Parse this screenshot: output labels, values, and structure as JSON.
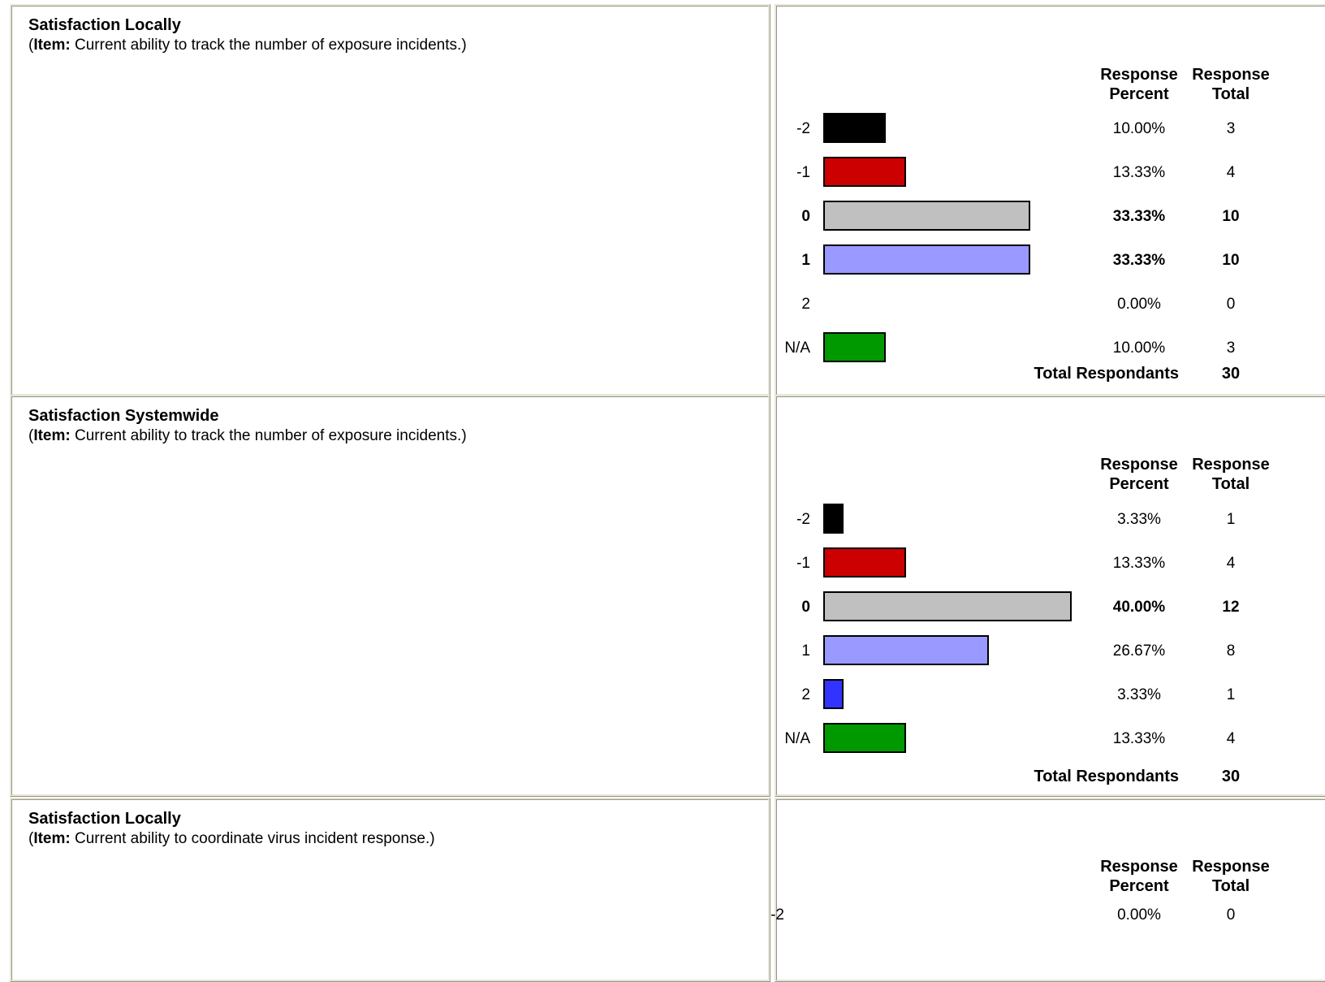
{
  "headers": {
    "percent_line1": "Response",
    "percent_line2": "Percent",
    "total_line1": "Response",
    "total_line2": "Total"
  },
  "total_label": "Total Respondants",
  "item_prefix": "Item:",
  "colors": {
    "-2": "#000000",
    "-1": "#cc0000",
    "0": "#c0c0c0",
    "1": "#9999ff",
    "2": "#3333ff",
    "N/A": "#009900"
  },
  "chart_data": [
    {
      "type": "bar",
      "title": "Satisfaction Locally",
      "item": "Current ability to track the number of exposure incidents.",
      "categories": [
        "-2",
        "-1",
        "0",
        "1",
        "2",
        "N/A"
      ],
      "percent_labels": [
        "10.00%",
        "13.33%",
        "33.33%",
        "33.33%",
        "0.00%",
        "10.00%"
      ],
      "values": [
        10.0,
        13.33,
        33.33,
        33.33,
        0.0,
        10.0
      ],
      "totals": [
        3,
        4,
        10,
        10,
        0,
        3
      ],
      "highlight": [
        false,
        false,
        true,
        true,
        false,
        false
      ],
      "total_respondants": 30
    },
    {
      "type": "bar",
      "title": "Satisfaction Systemwide",
      "item": "Current ability to track the number of exposure incidents.",
      "categories": [
        "-2",
        "-1",
        "0",
        "1",
        "2",
        "N/A"
      ],
      "percent_labels": [
        "3.33%",
        "13.33%",
        "40.00%",
        "26.67%",
        "3.33%",
        "13.33%"
      ],
      "values": [
        3.33,
        13.33,
        40.0,
        26.67,
        3.33,
        13.33
      ],
      "totals": [
        1,
        4,
        12,
        8,
        1,
        4
      ],
      "highlight": [
        false,
        false,
        true,
        false,
        false,
        false
      ],
      "total_respondants": 30
    },
    {
      "type": "bar",
      "title": "Satisfaction Locally",
      "item": "Current ability to coordinate virus incident response.",
      "categories": [
        "-2"
      ],
      "percent_labels": [
        "0.00%"
      ],
      "values": [
        0.0
      ],
      "totals": [
        0
      ],
      "highlight": [
        false
      ],
      "total_respondants": null
    }
  ]
}
